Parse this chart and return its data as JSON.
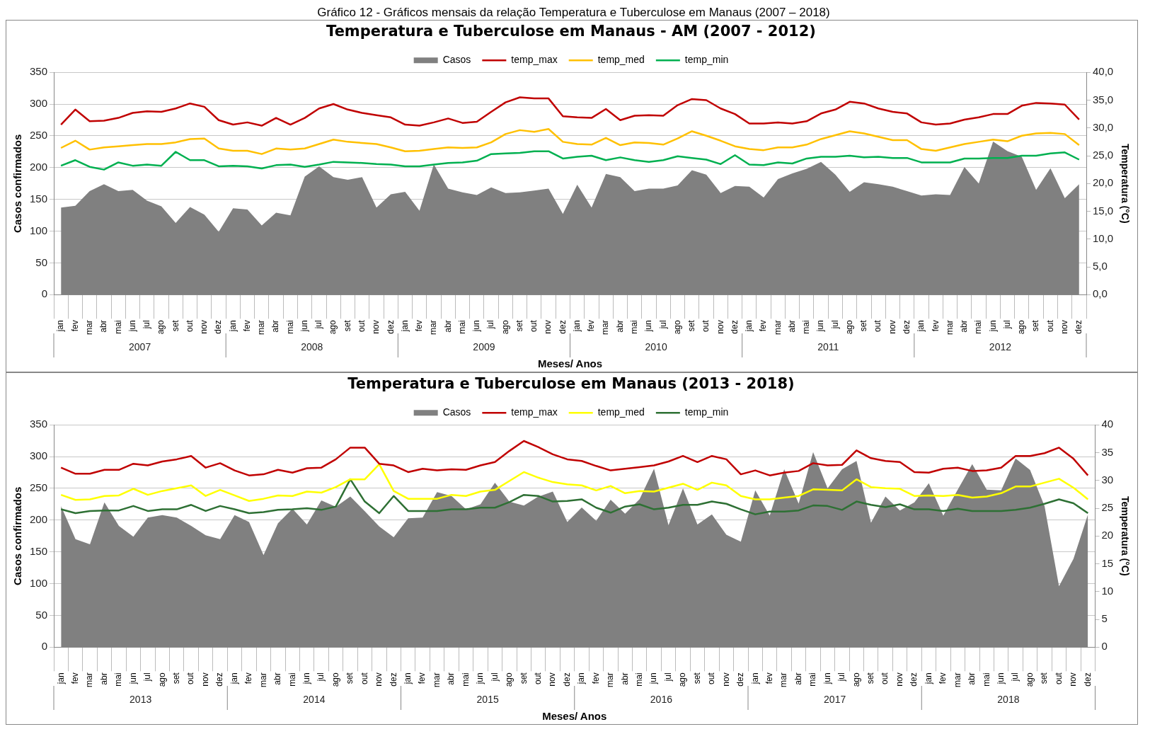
{
  "chart_data": [
    {
      "type": "line",
      "title": "Temperatura e Tuberculose em Manaus - AM (2007 - 2012)",
      "subtitle": "Gráfico 12 - Gráficos mensais da relação Temperatura e Tuberculose em Manaus (2007 – 2018)",
      "xlabel": "Meses/ Anos",
      "ylabel": "Casos confirmados",
      "y2label": "Temperatura (°C)",
      "categories": [
        "jan",
        "fev",
        "mar",
        "abr",
        "mai",
        "jun",
        "jul",
        "ago",
        "set",
        "out",
        "nov",
        "dez",
        "jan",
        "fev",
        "mar",
        "abr",
        "mai",
        "jun",
        "jul",
        "ago",
        "set",
        "out",
        "nov",
        "dez",
        "jan",
        "fev",
        "mar",
        "abr",
        "mai",
        "jun",
        "jul",
        "ago",
        "set",
        "out",
        "nov",
        "dez",
        "jan",
        "fev",
        "mar",
        "abr",
        "mai",
        "jun",
        "jul",
        "ago",
        "set",
        "out",
        "nov",
        "dez",
        "jan",
        "fev",
        "mar",
        "abr",
        "mai",
        "jun",
        "jul",
        "ago",
        "set",
        "out",
        "nov",
        "dez",
        "jan",
        "fev",
        "mar",
        "abr",
        "mai",
        "jun",
        "jul",
        "ago",
        "set",
        "out",
        "nov",
        "dez"
      ],
      "annotations": [
        "2007",
        "2008",
        "2009",
        "2010",
        "2011",
        "2012"
      ],
      "ylim": [
        0,
        350
      ],
      "yticks": [
        0,
        50,
        100,
        150,
        200,
        250,
        300,
        350
      ],
      "y2lim": [
        0,
        40
      ],
      "y2ticks": [
        {
          "value": 0,
          "label": "0,0"
        },
        {
          "value": 5,
          "label": "5,0"
        },
        {
          "value": 10,
          "label": "10,0"
        },
        {
          "value": 15,
          "label": "15,0"
        },
        {
          "value": 20,
          "label": "20,0"
        },
        {
          "value": 25,
          "label": "25,0"
        },
        {
          "value": 30,
          "label": "30,0"
        },
        {
          "value": 35,
          "label": "35,0"
        },
        {
          "value": 40,
          "label": "40,0"
        }
      ],
      "grid": "y",
      "legend": "top",
      "series": [
        {
          "name": "Casos",
          "type": "area",
          "color": "#808080",
          "values": [
            137,
            140,
            163,
            174,
            163,
            165,
            148,
            139,
            113,
            138,
            126,
            99,
            136,
            134,
            109,
            129,
            125,
            186,
            202,
            185,
            181,
            185,
            137,
            158,
            162,
            132,
            205,
            167,
            161,
            157,
            169,
            160,
            161,
            164,
            167,
            127,
            173,
            137,
            190,
            185,
            163,
            167,
            167,
            172,
            196,
            189,
            160,
            171,
            170,
            153,
            182,
            191,
            198,
            209,
            189,
            162,
            177,
            174,
            170,
            163,
            156,
            158,
            157,
            201,
            175,
            241,
            226,
            217,
            165,
            199,
            152,
            174
          ]
        },
        {
          "name": "temp_max",
          "axis": "y2",
          "color": "#c00000",
          "values": [
            30.6,
            33.3,
            31.2,
            31.3,
            31.8,
            32.7,
            33.0,
            32.9,
            33.5,
            34.4,
            33.8,
            31.4,
            30.6,
            31.0,
            30.4,
            31.8,
            30.6,
            31.8,
            33.5,
            34.3,
            33.3,
            32.7,
            32.3,
            31.9,
            30.6,
            30.4,
            31.0,
            31.7,
            30.9,
            31.1,
            32.9,
            34.6,
            35.5,
            35.3,
            35.3,
            32.1,
            31.9,
            31.8,
            33.4,
            31.4,
            32.2,
            32.3,
            32.2,
            34.1,
            35.2,
            35.0,
            33.5,
            32.5,
            30.8,
            30.8,
            31.0,
            30.8,
            31.2,
            32.6,
            33.3,
            34.7,
            34.4,
            33.5,
            32.9,
            32.6,
            31.0,
            30.6,
            30.8,
            31.5,
            31.9,
            32.5,
            32.5,
            34.0,
            34.5,
            34.4,
            34.2,
            31.5
          ]
        },
        {
          "name": "temp_med",
          "axis": "y2",
          "color": "#ffc000",
          "values": [
            26.4,
            27.7,
            26.1,
            26.5,
            26.7,
            26.9,
            27.1,
            27.1,
            27.4,
            28.0,
            28.1,
            26.3,
            25.9,
            25.9,
            25.3,
            26.3,
            26.1,
            26.3,
            27.1,
            27.9,
            27.5,
            27.3,
            27.1,
            26.5,
            25.8,
            25.9,
            26.2,
            26.5,
            26.4,
            26.5,
            27.4,
            28.9,
            29.6,
            29.3,
            29.8,
            27.5,
            27.1,
            27.0,
            28.2,
            26.9,
            27.4,
            27.3,
            27.0,
            28.1,
            29.4,
            28.6,
            27.7,
            26.7,
            26.2,
            26.0,
            26.5,
            26.5,
            27.0,
            28.0,
            28.7,
            29.4,
            29.0,
            28.4,
            27.8,
            27.8,
            26.2,
            25.9,
            26.5,
            27.1,
            27.5,
            27.9,
            27.6,
            28.6,
            29.0,
            29.1,
            28.9,
            26.9
          ]
        },
        {
          "name": "temp_min",
          "axis": "y2",
          "color": "#00b050",
          "values": [
            23.2,
            24.2,
            23.0,
            22.5,
            23.8,
            23.2,
            23.4,
            23.2,
            25.7,
            24.2,
            24.2,
            23.1,
            23.2,
            23.1,
            22.7,
            23.3,
            23.4,
            23.0,
            23.4,
            23.9,
            23.8,
            23.7,
            23.5,
            23.4,
            23.1,
            23.1,
            23.4,
            23.7,
            23.8,
            24.1,
            25.3,
            25.4,
            25.5,
            25.8,
            25.8,
            24.5,
            24.8,
            25.0,
            24.2,
            24.7,
            24.2,
            23.9,
            24.2,
            24.9,
            24.6,
            24.3,
            23.5,
            25.1,
            23.4,
            23.3,
            23.8,
            23.6,
            24.5,
            24.8,
            24.8,
            25.0,
            24.7,
            24.8,
            24.6,
            24.6,
            23.8,
            23.8,
            23.8,
            24.5,
            24.5,
            24.6,
            24.6,
            25.0,
            25.0,
            25.4,
            25.6,
            24.3
          ]
        }
      ]
    },
    {
      "type": "line",
      "title": "Temperatura e Tuberculose em Manaus (2013 - 2018)",
      "xlabel": "Meses/ Anos",
      "ylabel": "Casos confirmados",
      "y2label": "Temperatura (°C)",
      "categories": [
        "jan",
        "fev",
        "mar",
        "abr",
        "mai",
        "jun",
        "jul",
        "ago",
        "set",
        "out",
        "nov",
        "dez",
        "jan",
        "fev",
        "mar",
        "abr",
        "mai",
        "jun",
        "jul",
        "ago",
        "set",
        "out",
        "nov",
        "dez",
        "jan",
        "fev",
        "mar",
        "abr",
        "mai",
        "jun",
        "jul",
        "ago",
        "set",
        "out",
        "nov",
        "dez",
        "jan",
        "fev",
        "mar",
        "abr",
        "mai",
        "jun",
        "jul",
        "ago",
        "set",
        "out",
        "nov",
        "dez",
        "jan",
        "fev",
        "mar",
        "abr",
        "mai",
        "jun",
        "jul",
        "ago",
        "set",
        "out",
        "nov",
        "dez",
        "jan",
        "fev",
        "mar",
        "abr",
        "mai",
        "jun",
        "jul",
        "ago",
        "set",
        "out",
        "nov",
        "dez"
      ],
      "annotations": [
        "2013",
        "2014",
        "2015",
        "2016",
        "2017",
        "2018"
      ],
      "ylim": [
        0,
        350
      ],
      "yticks": [
        0,
        50,
        100,
        150,
        200,
        250,
        300,
        350
      ],
      "y2lim": [
        0,
        40
      ],
      "y2ticks": [
        0,
        5,
        10,
        15,
        20,
        25,
        30,
        35,
        40
      ],
      "grid": "y",
      "legend": "top",
      "series": [
        {
          "name": "Casos",
          "type": "area",
          "color": "#808080",
          "values": [
            222,
            170,
            162,
            228,
            191,
            174,
            204,
            208,
            204,
            191,
            176,
            170,
            208,
            197,
            145,
            195,
            218,
            193,
            231,
            221,
            237,
            214,
            190,
            173,
            203,
            204,
            244,
            238,
            217,
            225,
            259,
            229,
            223,
            237,
            245,
            197,
            220,
            199,
            232,
            210,
            233,
            281,
            192,
            250,
            193,
            209,
            177,
            166,
            247,
            207,
            280,
            226,
            307,
            250,
            280,
            293,
            196,
            237,
            215,
            228,
            258,
            207,
            248,
            288,
            248,
            247,
            297,
            279,
            222,
            96,
            139,
            209
          ]
        },
        {
          "name": "temp_max",
          "axis": "y2",
          "color": "#c00000",
          "values": [
            32.3,
            31.2,
            31.2,
            31.9,
            31.9,
            33.0,
            32.7,
            33.4,
            33.8,
            34.4,
            32.3,
            33.1,
            31.8,
            30.9,
            31.1,
            31.9,
            31.4,
            32.2,
            32.3,
            33.8,
            35.9,
            35.9,
            33.0,
            32.7,
            31.5,
            32.1,
            31.8,
            32.0,
            31.9,
            32.7,
            33.3,
            35.3,
            37.1,
            36.0,
            34.7,
            33.8,
            33.5,
            32.6,
            31.8,
            32.1,
            32.4,
            32.7,
            33.4,
            34.4,
            33.3,
            34.4,
            33.8,
            31.1,
            31.8,
            30.9,
            31.4,
            31.7,
            33.1,
            32.7,
            32.8,
            35.4,
            34.0,
            33.5,
            33.3,
            31.5,
            31.4,
            32.1,
            32.3,
            31.7,
            31.8,
            32.3,
            34.4,
            34.4,
            34.9,
            35.9,
            33.9,
            30.9
          ]
        },
        {
          "name": "temp_med",
          "axis": "y2",
          "color": "#ffff00",
          "values": [
            27.4,
            26.5,
            26.6,
            27.2,
            27.3,
            28.5,
            27.4,
            28.1,
            28.6,
            29.1,
            27.2,
            28.3,
            27.3,
            26.3,
            26.7,
            27.3,
            27.2,
            28.0,
            27.8,
            28.8,
            30.2,
            30.2,
            32.9,
            28.1,
            26.7,
            26.7,
            26.7,
            27.4,
            27.2,
            28.0,
            28.3,
            29.9,
            31.5,
            30.5,
            29.7,
            29.3,
            29.1,
            28.2,
            29.0,
            27.7,
            28.1,
            28.0,
            28.7,
            29.4,
            28.3,
            29.6,
            29.1,
            27.2,
            26.6,
            26.6,
            26.9,
            27.2,
            28.4,
            28.3,
            28.2,
            30.2,
            28.8,
            28.6,
            28.5,
            27.2,
            27.3,
            27.2,
            27.4,
            26.9,
            27.1,
            27.7,
            28.9,
            28.9,
            29.6,
            30.3,
            28.7,
            26.6
          ]
        },
        {
          "name": "temp_min",
          "axis": "y2",
          "color": "#2e7034",
          "values": [
            24.8,
            24.1,
            24.5,
            24.6,
            24.6,
            25.4,
            24.5,
            24.8,
            24.8,
            25.6,
            24.5,
            25.4,
            24.8,
            24.1,
            24.3,
            24.7,
            24.8,
            25.0,
            24.7,
            25.3,
            30.2,
            26.2,
            24.1,
            27.2,
            24.5,
            24.5,
            24.5,
            24.8,
            24.8,
            25.1,
            25.1,
            26.1,
            27.4,
            27.2,
            26.2,
            26.3,
            26.6,
            25.1,
            24.2,
            25.3,
            25.7,
            24.8,
            25.1,
            25.6,
            25.6,
            26.2,
            25.8,
            24.8,
            23.9,
            24.4,
            24.4,
            24.6,
            25.5,
            25.4,
            24.7,
            26.2,
            25.6,
            25.2,
            25.7,
            24.8,
            24.8,
            24.5,
            24.9,
            24.5,
            24.5,
            24.5,
            24.7,
            25.1,
            25.8,
            26.6,
            25.9,
            24.1
          ]
        }
      ]
    }
  ]
}
